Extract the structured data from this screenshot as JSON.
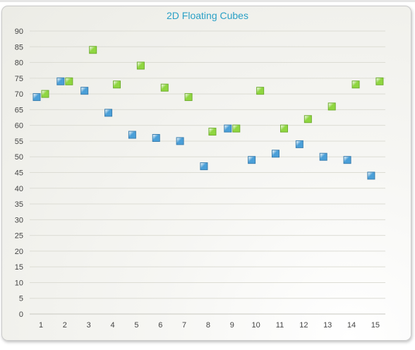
{
  "chart_data": {
    "type": "scatter",
    "title": "2D Floating Cubes",
    "xlabel": "",
    "ylabel": "",
    "categories": [
      "1",
      "2",
      "3",
      "4",
      "5",
      "6",
      "7",
      "8",
      "9",
      "10",
      "11",
      "12",
      "13",
      "14",
      "15"
    ],
    "x": [
      1,
      2,
      3,
      4,
      5,
      6,
      7,
      8,
      9,
      10,
      11,
      12,
      13,
      14,
      15
    ],
    "ylim": [
      0,
      90
    ],
    "yticks": [
      0,
      5,
      10,
      15,
      20,
      25,
      30,
      35,
      40,
      45,
      50,
      55,
      60,
      65,
      70,
      75,
      80,
      85,
      90
    ],
    "grid": true,
    "series": [
      {
        "color": "#4a9fd8",
        "values": [
          69,
          74,
          71,
          64,
          57,
          56,
          55,
          47,
          59,
          49,
          51,
          54,
          50,
          49,
          44
        ]
      },
      {
        "color": "#8fd640",
        "values": [
          70,
          74,
          84,
          73,
          79,
          72,
          69,
          58,
          59,
          71,
          59,
          62,
          66,
          73,
          74
        ]
      }
    ]
  }
}
